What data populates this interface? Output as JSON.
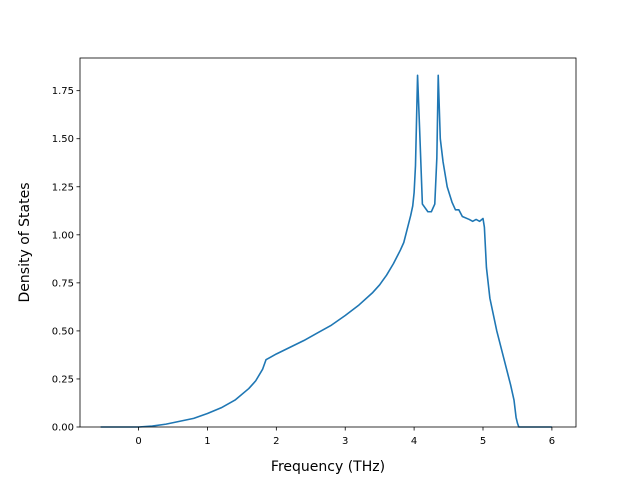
{
  "chart_data": {
    "type": "line",
    "title": "",
    "xlabel": "Frequency (THz)",
    "ylabel": "Density of States",
    "xlim": [
      -0.85,
      6.35
    ],
    "ylim": [
      0.0,
      1.92
    ],
    "xticks": [
      0,
      1,
      2,
      3,
      4,
      5,
      6
    ],
    "xtick_labels": [
      "0",
      "1",
      "2",
      "3",
      "4",
      "5",
      "6"
    ],
    "yticks": [
      0.0,
      0.25,
      0.5,
      0.75,
      1.0,
      1.25,
      1.5,
      1.75
    ],
    "ytick_labels": [
      "0.00",
      "0.25",
      "0.50",
      "0.75",
      "1.00",
      "1.25",
      "1.50",
      "1.75"
    ],
    "grid": false,
    "legend": "none",
    "series": [
      {
        "color": "#1f77b4",
        "x": [
          -0.55,
          0.0,
          0.2,
          0.4,
          0.6,
          0.8,
          1.0,
          1.2,
          1.4,
          1.6,
          1.7,
          1.8,
          1.85,
          1.9,
          2.0,
          2.2,
          2.4,
          2.6,
          2.8,
          3.0,
          3.2,
          3.4,
          3.5,
          3.6,
          3.7,
          3.8,
          3.85,
          3.9,
          3.95,
          3.98,
          4.0,
          4.02,
          4.05,
          4.08,
          4.12,
          4.2,
          4.25,
          4.3,
          4.33,
          4.35,
          4.38,
          4.42,
          4.48,
          4.55,
          4.6,
          4.65,
          4.7,
          4.8,
          4.85,
          4.9,
          4.95,
          5.0,
          5.02,
          5.05,
          5.1,
          5.2,
          5.3,
          5.4,
          5.45,
          5.48,
          5.5,
          5.52,
          5.6,
          6.0
        ],
        "y": [
          0.0,
          0.0,
          0.005,
          0.015,
          0.03,
          0.045,
          0.07,
          0.1,
          0.14,
          0.2,
          0.24,
          0.3,
          0.35,
          0.36,
          0.38,
          0.415,
          0.45,
          0.49,
          0.53,
          0.58,
          0.635,
          0.7,
          0.74,
          0.79,
          0.85,
          0.92,
          0.96,
          1.03,
          1.1,
          1.15,
          1.22,
          1.36,
          1.83,
          1.55,
          1.16,
          1.12,
          1.12,
          1.16,
          1.4,
          1.83,
          1.5,
          1.38,
          1.25,
          1.17,
          1.13,
          1.13,
          1.095,
          1.08,
          1.07,
          1.08,
          1.07,
          1.085,
          1.04,
          0.83,
          0.67,
          0.5,
          0.36,
          0.22,
          0.14,
          0.05,
          0.02,
          0.0,
          0.0,
          0.0
        ]
      }
    ]
  }
}
